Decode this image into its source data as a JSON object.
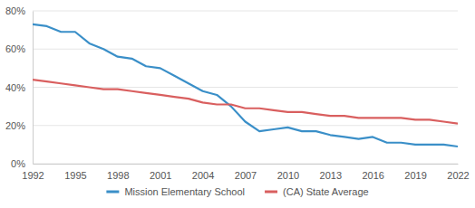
{
  "chart_data": {
    "type": "line",
    "x": [
      1992,
      1993,
      1994,
      1995,
      1996,
      1997,
      1998,
      1999,
      2000,
      2001,
      2002,
      2003,
      2004,
      2005,
      2006,
      2007,
      2008,
      2009,
      2010,
      2011,
      2012,
      2013,
      2014,
      2015,
      2016,
      2017,
      2018,
      2019,
      2020,
      2021,
      2022
    ],
    "series": [
      {
        "name": "Mission Elementary School",
        "color": "#3a8fc8",
        "values": [
          73,
          72,
          69,
          69,
          63,
          60,
          56,
          55,
          51,
          50,
          46,
          42,
          38,
          36,
          30,
          22,
          17,
          18,
          19,
          17,
          17,
          15,
          14,
          13,
          14,
          11,
          11,
          10,
          10,
          10,
          9
        ]
      },
      {
        "name": "(CA) State Average",
        "color": "#d95f5f",
        "values": [
          44,
          43,
          42,
          41,
          40,
          39,
          39,
          38,
          37,
          36,
          35,
          34,
          32,
          31,
          31,
          29,
          29,
          28,
          27,
          27,
          26,
          25,
          25,
          24,
          24,
          24,
          24,
          23,
          23,
          22,
          21
        ]
      }
    ],
    "xlim": [
      1992,
      2022
    ],
    "xticks": [
      1992,
      1995,
      1998,
      2001,
      2004,
      2007,
      2010,
      2013,
      2016,
      2019,
      2022
    ],
    "ylim": [
      0,
      80
    ],
    "yticks": [
      {
        "value": 0,
        "label": "0%"
      },
      {
        "value": 20,
        "label": "20%"
      },
      {
        "value": 40,
        "label": "40%"
      },
      {
        "value": 60,
        "label": "60%"
      },
      {
        "value": 80,
        "label": "80%"
      }
    ],
    "grid": true,
    "legend": "bottom"
  }
}
